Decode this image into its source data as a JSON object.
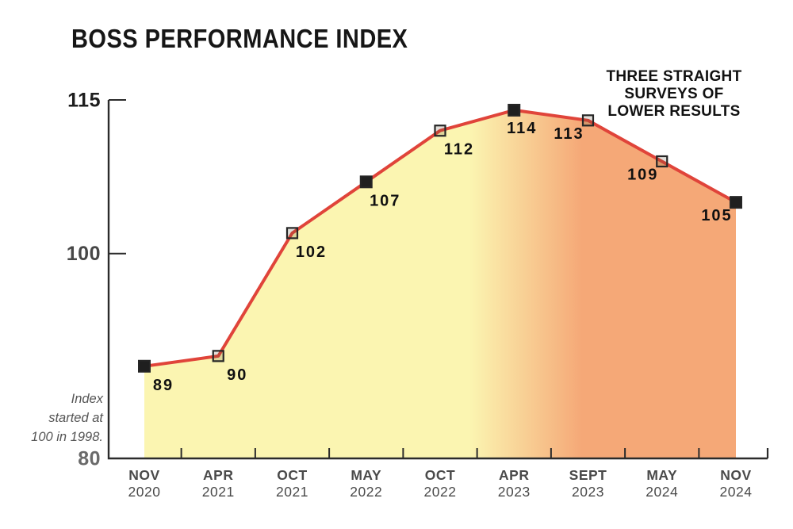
{
  "chart_data": {
    "type": "area",
    "title": "BOSS PERFORMANCE INDEX",
    "annotation": "THREE STRAIGHT\nSURVEYS OF\nLOWER RESULTS",
    "note": "Index\nstarted at\n100 in 1998.",
    "xlabel": "",
    "ylabel": "",
    "ylim": [
      80,
      115
    ],
    "grid": false,
    "legend": false,
    "categories": [
      "NOV 2020",
      "APR 2021",
      "OCT 2021",
      "MAY 2022",
      "OCT 2022",
      "APR 2023",
      "SEPT 2023",
      "MAY 2024",
      "NOV 2024"
    ],
    "values": [
      89,
      90,
      102,
      107,
      112,
      114,
      113,
      109,
      105
    ],
    "points": [
      {
        "month": "NOV",
        "year": "2020",
        "value": 89,
        "marker": "solid",
        "label_side": "right"
      },
      {
        "month": "APR",
        "year": "2021",
        "value": 90,
        "marker": "hollow",
        "label_side": "right"
      },
      {
        "month": "OCT",
        "year": "2021",
        "value": 102,
        "marker": "hollow",
        "label_side": "right"
      },
      {
        "month": "MAY",
        "year": "2022",
        "value": 107,
        "marker": "solid",
        "label_side": "right"
      },
      {
        "month": "OCT",
        "year": "2022",
        "value": 112,
        "marker": "hollow",
        "label_side": "right"
      },
      {
        "month": "APR",
        "year": "2023",
        "value": 114,
        "marker": "solid",
        "label_side": "center"
      },
      {
        "month": "SEPT",
        "year": "2023",
        "value": 113,
        "marker": "hollow",
        "label_side": "left"
      },
      {
        "month": "MAY",
        "year": "2024",
        "value": 109,
        "marker": "hollow",
        "label_side": "left"
      },
      {
        "month": "NOV",
        "year": "2024",
        "value": 105,
        "marker": "solid",
        "label_side": "left"
      }
    ],
    "yticks": [
      {
        "label": "115",
        "value": 115,
        "color": "#1d1d1d"
      },
      {
        "label": "100",
        "value": 100,
        "color": "#474747"
      },
      {
        "label": "80",
        "value": 80,
        "color": "#6a6a6a"
      }
    ],
    "colors": {
      "line": "#E0443A",
      "area_left": "#FBF5B1",
      "area_right": "#F5A877",
      "axis": "#2b2b2b",
      "marker_fill": "#1f1f1f",
      "marker_hollow_fill": "rgba(90,75,50,0.18)",
      "marker_stroke": "#262626",
      "point_label": "#101010",
      "x_tick_label": "#4a4a4a",
      "title": "#161616",
      "annotation": "#111111",
      "note": "#555555"
    }
  }
}
